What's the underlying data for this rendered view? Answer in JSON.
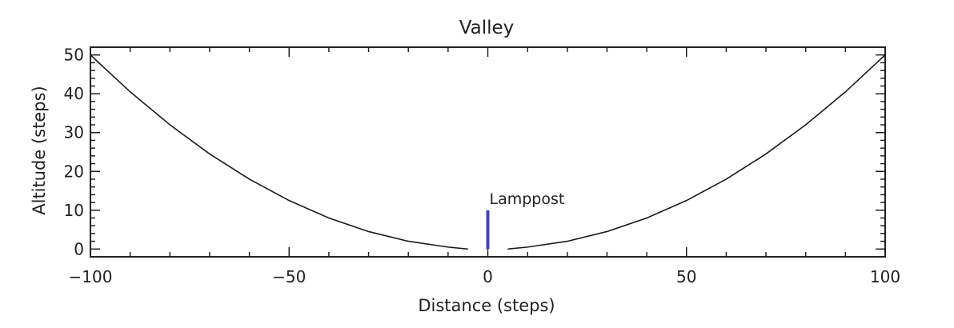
{
  "chart_data": {
    "type": "line",
    "title": "Valley",
    "xlabel": "Distance (steps)",
    "ylabel": "Altitude (steps)",
    "xlim": [
      -100,
      100
    ],
    "ylim": [
      -2,
      52
    ],
    "x_major_ticks": [
      -100,
      -50,
      0,
      50,
      100
    ],
    "x_tick_labels": [
      "−100",
      "−50",
      "0",
      "50",
      "100"
    ],
    "y_major_ticks": [
      0,
      10,
      20,
      30,
      40,
      50
    ],
    "y_tick_labels": [
      "0",
      "10",
      "20",
      "30",
      "40",
      "50"
    ],
    "grid": false,
    "series": [
      {
        "name": "valley profile",
        "color": "#1a1a1a",
        "x": [
          -100,
          -90,
          -80,
          -70,
          -60,
          -50,
          -40,
          -30,
          -20,
          -10,
          -5,
          5,
          10,
          20,
          30,
          40,
          50,
          60,
          70,
          80,
          90,
          100
        ],
        "y": [
          50,
          40.5,
          32,
          24.5,
          18,
          12.5,
          8,
          4.5,
          2,
          0.5,
          0,
          0,
          0.5,
          2,
          4.5,
          8,
          12.5,
          18,
          24.5,
          32,
          40.5,
          50
        ]
      }
    ],
    "annotations": [
      {
        "label": "Lamppost",
        "type": "vertical-bar",
        "x": 0,
        "y_from": 0,
        "y_to": 10,
        "color": "#4444bb"
      }
    ]
  }
}
